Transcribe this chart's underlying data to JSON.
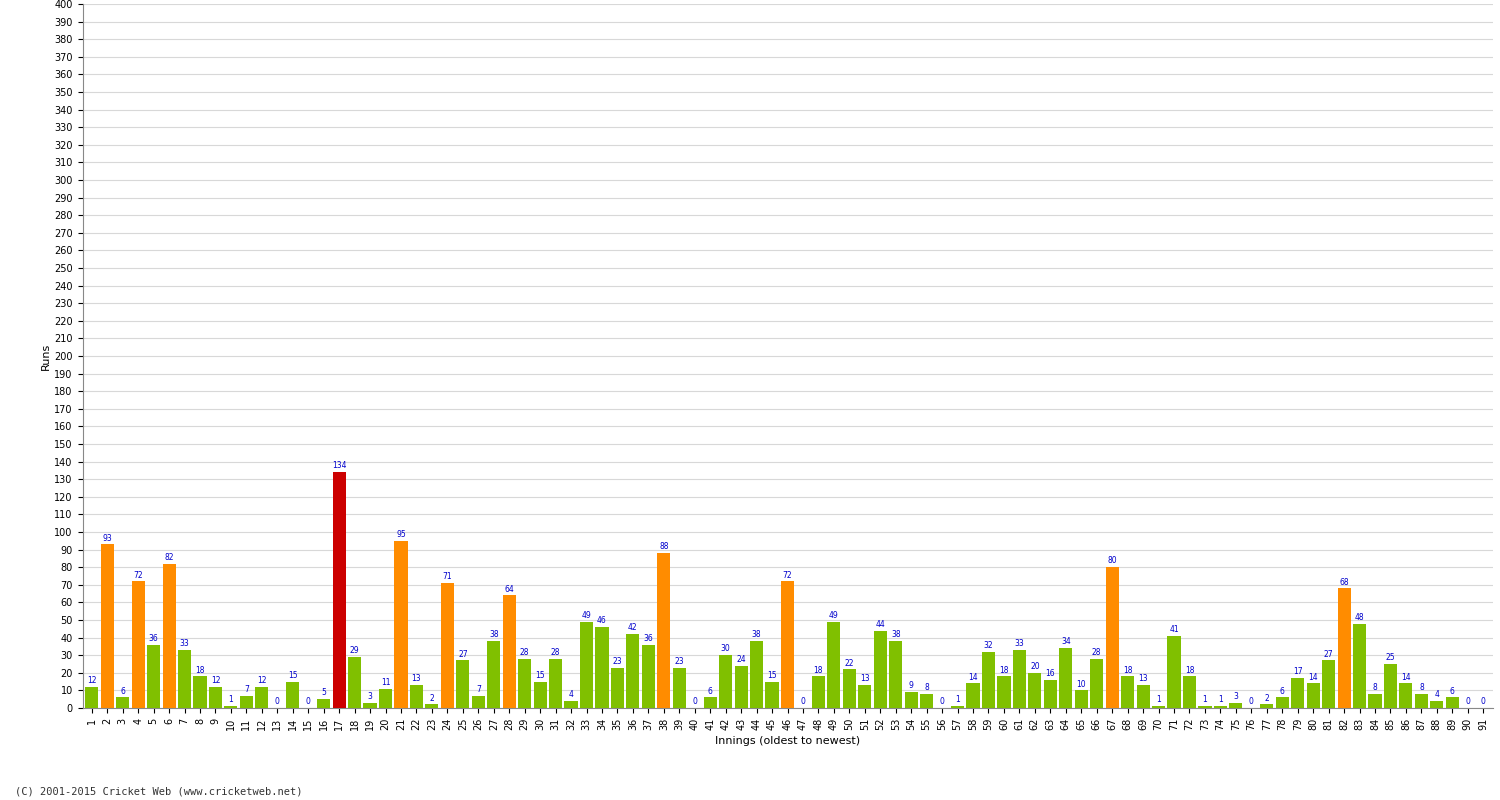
{
  "innings": [
    1,
    2,
    3,
    4,
    5,
    6,
    7,
    8,
    9,
    10,
    11,
    12,
    13,
    14,
    15,
    16,
    17,
    18,
    19,
    20,
    21,
    22,
    23,
    24,
    25,
    26,
    27,
    28,
    29,
    30,
    31,
    32,
    33,
    34,
    35,
    36,
    37,
    38,
    39,
    40,
    41,
    42,
    43,
    44,
    45,
    46,
    47,
    48,
    49,
    50,
    51,
    52,
    53,
    54,
    55,
    56,
    57,
    58,
    59,
    60,
    61,
    62,
    63,
    64,
    65,
    66,
    67,
    68,
    69,
    70,
    71,
    72,
    73,
    74,
    75,
    76,
    77,
    78,
    79,
    80,
    81,
    82,
    83,
    84,
    85,
    86,
    87,
    88,
    89,
    90,
    91
  ],
  "scores": [
    12,
    93,
    6,
    72,
    36,
    82,
    33,
    18,
    12,
    1,
    7,
    12,
    0,
    15,
    0,
    5,
    134,
    29,
    3,
    11,
    95,
    13,
    2,
    71,
    27,
    7,
    38,
    64,
    28,
    15,
    28,
    4,
    49,
    46,
    23,
    42,
    36,
    88,
    23,
    0,
    6,
    30,
    24,
    38,
    15,
    72,
    0,
    18,
    49,
    22,
    13,
    44,
    38,
    9,
    8,
    0,
    1,
    14,
    32,
    18,
    33,
    20,
    16,
    34,
    10,
    28,
    80,
    18,
    13,
    1,
    41,
    18,
    1,
    1,
    3,
    0,
    2,
    6,
    17,
    14,
    27,
    68,
    48,
    8,
    25,
    14,
    8,
    4,
    6,
    0,
    0
  ],
  "ylabel": "Runs",
  "xlabel": "Innings (oldest to newest)",
  "ylim": [
    0,
    400
  ],
  "color_orange": "#FF8C00",
  "color_green": "#80C000",
  "color_red": "#CC0000",
  "color_label": "#0000CC",
  "bg_color": "#FFFFFF",
  "grid_color": "#D8D8D8",
  "footer": "(C) 2001-2015 Cricket Web (www.cricketweb.net)",
  "label_fontsize": 5.5,
  "tick_fontsize": 7.0,
  "ylabel_fontsize": 8,
  "xlabel_fontsize": 8
}
